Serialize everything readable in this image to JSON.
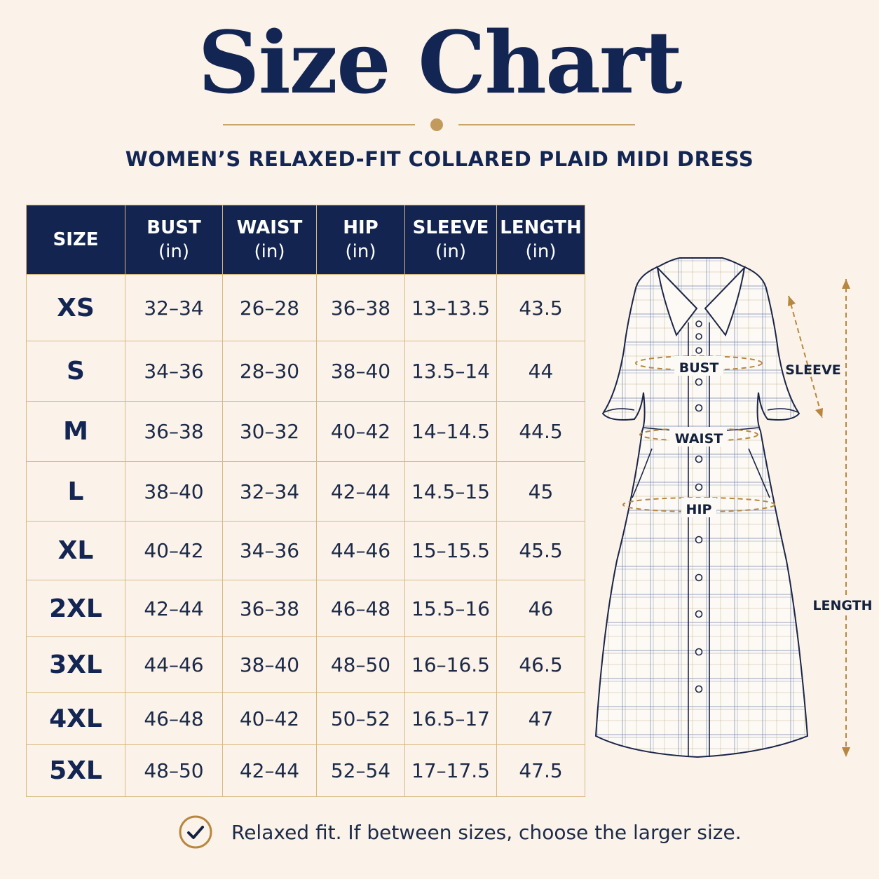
{
  "title": "Size Chart",
  "subtitle": "WOMEN’S RELAXED-FIT COLLARED PLAID MIDI DRESS",
  "colors": {
    "navy": "#12244f",
    "gold": "#c29a5b",
    "background": "#fbf3ea"
  },
  "table": {
    "headers": [
      {
        "label": "SIZE",
        "unit": ""
      },
      {
        "label": "BUST",
        "unit": "(in)"
      },
      {
        "label": "WAIST",
        "unit": "(in)"
      },
      {
        "label": "HIP",
        "unit": "(in)"
      },
      {
        "label": "SLEEVE",
        "unit": "(in)"
      },
      {
        "label": "LENGTH",
        "unit": "(in)"
      }
    ],
    "rows": [
      [
        "XS",
        "32–34",
        "26–28",
        "36–38",
        "13–13.5",
        "43.5"
      ],
      [
        "S",
        "34–36",
        "28–30",
        "38–40",
        "13.5–14",
        "44"
      ],
      [
        "M",
        "36–38",
        "30–32",
        "40–42",
        "14–14.5",
        "44.5"
      ],
      [
        "L",
        "38–40",
        "32–34",
        "42–44",
        "14.5–15",
        "45"
      ],
      [
        "XL",
        "40–42",
        "34–36",
        "44–46",
        "15–15.5",
        "45.5"
      ],
      [
        "2XL",
        "42–44",
        "36–38",
        "46–48",
        "15.5–16",
        "46"
      ],
      [
        "3XL",
        "44–46",
        "38–40",
        "48–50",
        "16–16.5",
        "46.5"
      ],
      [
        "4XL",
        "46–48",
        "40–42",
        "50–52",
        "16.5–17",
        "47"
      ],
      [
        "5XL",
        "48–50",
        "42–44",
        "52–54",
        "17–17.5",
        "47.5"
      ]
    ]
  },
  "diagram": {
    "icon": "plaid-dress-illustration",
    "labels": {
      "bust": "BUST",
      "waist": "WAIST",
      "hip": "HIP",
      "sleeve": "SLEEVE",
      "length": "LENGTH"
    }
  },
  "note": {
    "icon": "check-circle-icon",
    "text": "Relaxed fit. If between sizes, choose the larger size."
  }
}
